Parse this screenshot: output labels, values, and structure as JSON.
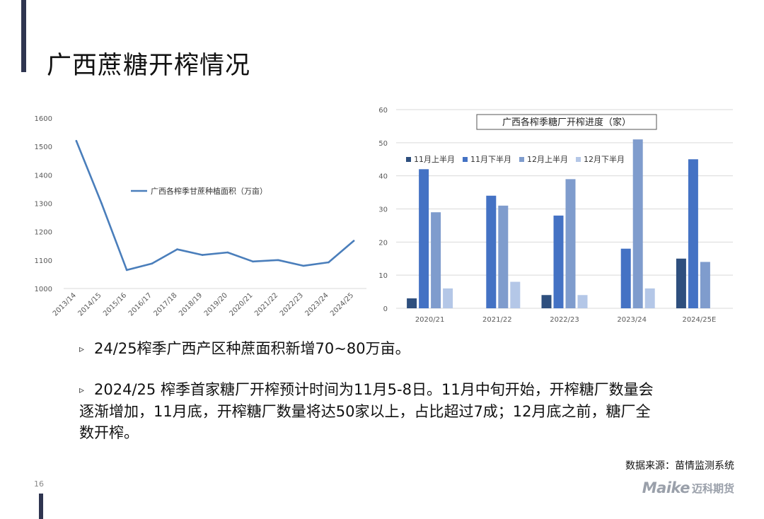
{
  "title": "广西蔗糖开榨情况",
  "page_number": "16",
  "bullets": [
    "24/25榨季广西产区种蔗面积新增70~80万亩。",
    "2024/25 榨季首家糖厂开榨预计时间为11月5-8日。11月中旬开始，开榨糖厂数量会逐渐增加，11月底，开榨糖厂数量将达50家以上，占比超过7成；12月底之前，糖厂全数开榨。"
  ],
  "bullet_marker": "▹",
  "source": "数据来源：苗情监测系统",
  "logo": {
    "word": "Maike",
    "cn": "迈科期货"
  },
  "colors": {
    "line": "#4a7ebb",
    "series": [
      "#2e4f7e",
      "#4472c4",
      "#7f9ccd",
      "#b4c7e7"
    ],
    "accent": "#2f3550"
  },
  "chart_data": [
    {
      "type": "line",
      "categories": [
        "2013/14",
        "2014/15",
        "2015/16",
        "2016/17",
        "2017/18",
        "2018/19",
        "2019/20",
        "2020/21",
        "2021/22",
        "2022/23",
        "2023/24",
        "2024/25"
      ],
      "series": [
        {
          "name": "广西各榨季甘蔗种植面积（万亩）",
          "values": [
            1520,
            1300,
            1065,
            1088,
            1138,
            1118,
            1127,
            1095,
            1100,
            1080,
            1092,
            1168
          ]
        }
      ],
      "title": "",
      "xlabel": "",
      "ylabel": "",
      "ylim": [
        1000,
        1600
      ],
      "yticks": [
        1000,
        1100,
        1200,
        1300,
        1400,
        1500,
        1600
      ],
      "grid": false,
      "legend": "center"
    },
    {
      "type": "bar",
      "title": "广西各榨季糖厂开榨进度（家）",
      "categories": [
        "2020/21",
        "2021/22",
        "2022/23",
        "2023/24",
        "2024/25E"
      ],
      "series": [
        {
          "name": "11月上半月",
          "values": [
            3,
            0,
            4,
            0,
            15
          ]
        },
        {
          "name": "11月下半月",
          "values": [
            42,
            34,
            28,
            18,
            45
          ]
        },
        {
          "name": "12月上半月",
          "values": [
            29,
            31,
            39,
            51,
            14
          ]
        },
        {
          "name": "12月下半月",
          "values": [
            6,
            8,
            4,
            6,
            0
          ]
        }
      ],
      "xlabel": "",
      "ylabel": "",
      "ylim": [
        0,
        60
      ],
      "yticks": [
        0,
        10,
        20,
        30,
        40,
        50,
        60
      ],
      "grid": true,
      "legend": "top-left"
    }
  ]
}
